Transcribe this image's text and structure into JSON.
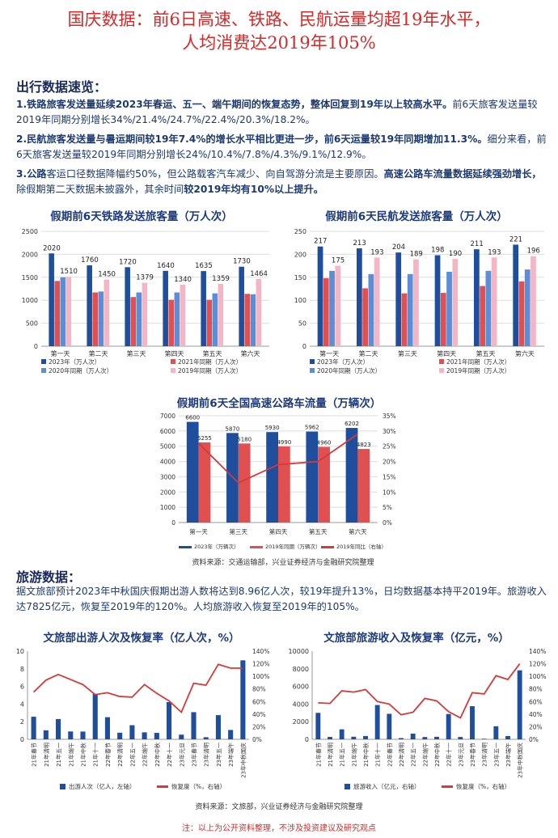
{
  "title_line1": "国庆数据：前6日高速、铁路、民航运量均超19年水平，",
  "title_line2": "人均消费达2019年105%",
  "travel_heading": "出行数据速览：",
  "p1_bold": "1.铁路旅客发送量延续2023年春运、五一、端午期间的恢复态势，整体回复到19年以上较高水平。",
  "p1_rest": "前6天旅客发送量较2019年同期分别增长34%/21.4%/24.7%/22.4%/20.3%/18.2%。",
  "p2_bold": "2.民航旅客发送量与暑运期间较19年7.4%的增长水平相比更进一步，前6天运量较19年同期增加11.3%。",
  "p2_rest": "细分来看，前6天旅客发送量较2019年同期分别增长24%/10.4%/7.8%/4.3%/9.1%/12.9%。",
  "p3_a": "3.公路",
  "p3_b": "客运口径数据降幅约50%，但公路载客汽车减少、向自驾游分流是主要原因。",
  "p3_c": "高速公路车流量数据延续强劲增长，",
  "p3_d": "除假期第二天数据未披露外，其余时间",
  "p3_e": "较2019年均有10%以上提升。",
  "tour_heading": "旅游数据：",
  "tour_text": "据文旅部预计2023年中秋国庆假期出游人数将达到8.96亿人次，较19年提升13%，日均数据基本持平2019年。旅游收入达7825亿元，恢复至2019年的120%。人均旅游收入恢复至2019年的105%。",
  "source1": "资料来源：交通运输部，兴业证券经济与金融研究院整理",
  "source2": "资料来源：文旅部，兴业证券经济与金融研究院整理",
  "note": "注：以上为公开资料整理，不涉及投资建议及研究观点",
  "colors": {
    "navy": "#1f4e9c",
    "red": "#e05050",
    "blue": "#5b8ed6",
    "pink": "#f4b6c4",
    "line": "#d43a3a",
    "title": "#d42a2a"
  },
  "chart_data": [
    {
      "type": "bar",
      "title": "假期前6天铁路发送旅客量（万人次）",
      "categories": [
        "第一天",
        "第二天",
        "第三天",
        "第四天",
        "第五天",
        "第六天"
      ],
      "ylim": [
        0,
        2500
      ],
      "yticks": [
        "0",
        "500",
        "1000",
        "1500",
        "2000",
        "2500"
      ],
      "series": [
        {
          "name": "2023年（万人次）",
          "values": [
            2020,
            1760,
            1720,
            1640,
            1635,
            1730
          ]
        },
        {
          "name": "2021年同期（万人次）",
          "values": [
            1420,
            1170,
            1070,
            1010,
            1010,
            1140
          ]
        },
        {
          "name": "2020年同期（万人次）",
          "values": [
            1500,
            1190,
            1170,
            1170,
            1150,
            1130
          ]
        },
        {
          "name": "2019年同期（万人次）",
          "values": [
            1510,
            1450,
            1379,
            1340,
            1359,
            1464
          ]
        }
      ],
      "labels_first": [
        "2020",
        "1760",
        "1720",
        "1640",
        "1635",
        "1730"
      ],
      "labels_last": [
        "1510",
        "1450",
        "1379",
        "1340",
        "1359",
        "1464"
      ],
      "legend": "bottom"
    },
    {
      "type": "bar",
      "title": "假期前6天民航发送旅客量（万人次）",
      "categories": [
        "第一天",
        "第二天",
        "第三天",
        "第四天",
        "第五天",
        "第六天"
      ],
      "ylim": [
        0,
        250
      ],
      "yticks": [
        "0",
        "50",
        "100",
        "150",
        "200",
        "250"
      ],
      "series": [
        {
          "name": "2023年（万人次）",
          "values": [
            217,
            213,
            204,
            198,
            211,
            221
          ]
        },
        {
          "name": "2021年同期（万人次）",
          "values": [
            148,
            126,
            115,
            116,
            131,
            141
          ]
        },
        {
          "name": "2020年同期（万人次）",
          "values": [
            164,
            157,
            157,
            162,
            164,
            167
          ]
        },
        {
          "name": "2019年同期（万人次）",
          "values": [
            175,
            193,
            189,
            190,
            193,
            196
          ]
        }
      ],
      "labels_first": [
        "217",
        "213",
        "204",
        "198",
        "211",
        "221"
      ],
      "labels_last": [
        "175",
        "193",
        "189",
        "190",
        "193",
        "196"
      ],
      "legend": "bottom"
    },
    {
      "type": "bar",
      "title": "假期前6天全国高速公路车流量（万辆次）",
      "categories": [
        "第一天",
        "第三天",
        "第四天",
        "第五天",
        "第六天"
      ],
      "ylim": [
        0,
        7000
      ],
      "yticks": [
        "0",
        "1000",
        "2000",
        "3000",
        "4000",
        "5000",
        "6000",
        "7000"
      ],
      "y2lim": [
        0,
        35
      ],
      "y2ticks": [
        "0%",
        "5%",
        "10%",
        "15%",
        "20%",
        "25%",
        "30%",
        "35%"
      ],
      "series": [
        {
          "name": "2023年（万辆次）",
          "values": [
            6600,
            5870,
            5930,
            5962,
            6202
          ]
        },
        {
          "name": "2019年同期（万辆次）",
          "values": [
            5255,
            5180,
            4990,
            4960,
            4823
          ]
        },
        {
          "name": "2019年同比（右轴）",
          "axis": "right",
          "values": [
            26,
            13,
            19,
            20,
            29
          ]
        }
      ],
      "labels_2023": [
        "6600",
        "5870",
        "5930",
        "5962",
        "6202"
      ],
      "labels_2019": [
        "5255",
        "5180",
        "4990",
        "4960",
        "4823"
      ],
      "legend": "bottom"
    },
    {
      "type": "bar",
      "title": "文旅部出游人次及恢复率（亿人次，%）",
      "categories": [
        "21年春节",
        "21年清明",
        "21年五一",
        "21年端午",
        "21年中秋",
        "21年十一",
        "22年春节",
        "22年清明",
        "22年五一",
        "22年端午",
        "22年中秋",
        "22年十一",
        "23年元旦",
        "23年春节",
        "23年清明",
        "23年五一",
        "23年端午",
        "23年中秋国庆"
      ],
      "ylim": [
        0,
        10
      ],
      "yticks": [
        "0",
        "2",
        "4",
        "6",
        "8",
        "10"
      ],
      "y2lim": [
        0,
        140
      ],
      "y2ticks": [
        "0%",
        "20%",
        "40%",
        "60%",
        "80%",
        "100%",
        "120%",
        "140%"
      ],
      "series": [
        {
          "name": "出游人次（亿人，左轴）",
          "values": [
            2.56,
            1.02,
            2.3,
            0.89,
            0.88,
            5.15,
            2.51,
            0.75,
            1.6,
            0.79,
            0.73,
            4.22,
            0.53,
            3.08,
            0.24,
            2.74,
            1.06,
            8.96
          ]
        },
        {
          "name": "恢复度（%，右轴）",
          "axis": "right",
          "values": [
            75,
            94,
            103,
            95,
            87,
            71,
            74,
            68,
            67,
            87,
            73,
            61,
            43,
            89,
            86,
            119,
            113,
            113
          ]
        }
      ],
      "legend": "bottom"
    },
    {
      "type": "bar",
      "title": "文旅部旅游收入及恢复率（亿元，%）",
      "categories": [
        "21年春节",
        "21年清明",
        "21年五一",
        "21年端午",
        "21年中秋",
        "21年十一",
        "22年春节",
        "22年清明",
        "22年五一",
        "22年端午",
        "22年中秋",
        "22年十一",
        "23年元旦",
        "23年春节",
        "23年清明",
        "23年五一",
        "23年端午",
        "23年中秋国庆"
      ],
      "ylim": [
        0,
        10000
      ],
      "yticks": [
        "0",
        "2000",
        "4000",
        "6000",
        "8000",
        "10000"
      ],
      "y2lim": [
        0,
        140
      ],
      "y2ticks": [
        "0%",
        "20%",
        "40%",
        "60%",
        "80%",
        "100%",
        "120%",
        "140%"
      ],
      "series": [
        {
          "name": "旅游收入（亿元，右轴）",
          "values": [
            3000,
            272,
            1132,
            294,
            375,
            3890,
            2892,
            143,
            647,
            258,
            287,
            2872,
            265,
            3758,
            65,
            1481,
            373,
            7825
          ]
        },
        {
          "name": "恢复度（%，右轴）",
          "axis": "right",
          "values": [
            58,
            57,
            77,
            75,
            79,
            60,
            56,
            39,
            43,
            65,
            61,
            44,
            34,
            74,
            72,
            101,
            95,
            120
          ]
        }
      ],
      "legend": "bottom"
    }
  ]
}
